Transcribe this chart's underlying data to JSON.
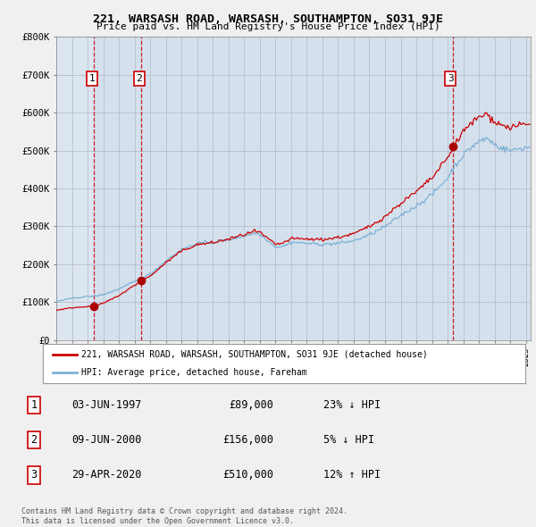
{
  "title": "221, WARSASH ROAD, WARSASH, SOUTHAMPTON, SO31 9JE",
  "subtitle": "Price paid vs. HM Land Registry's House Price Index (HPI)",
  "ylim": [
    0,
    800000
  ],
  "yticks": [
    0,
    100000,
    200000,
    300000,
    400000,
    500000,
    600000,
    700000,
    800000
  ],
  "ytick_labels": [
    "£0",
    "£100K",
    "£200K",
    "£300K",
    "£400K",
    "£500K",
    "£600K",
    "£700K",
    "£800K"
  ],
  "xlim_start": 1995.4,
  "xlim_end": 2025.3,
  "background_color": "#dce6f0",
  "plot_bg_color": "#dce6f0",
  "grid_color": "#b0b8c8",
  "sales": [
    {
      "date_num": 1997.42,
      "price": 89000,
      "label": "1"
    },
    {
      "date_num": 2000.44,
      "price": 156000,
      "label": "2"
    },
    {
      "date_num": 2020.33,
      "price": 510000,
      "label": "3"
    }
  ],
  "sale_marker_color": "#aa0000",
  "hpi_line_color": "#7ab0d4",
  "price_line_color": "#cc0000",
  "legend_label_price": "221, WARSASH ROAD, WARSASH, SOUTHAMPTON, SO31 9JE (detached house)",
  "legend_label_hpi": "HPI: Average price, detached house, Fareham",
  "table_rows": [
    {
      "num": "1",
      "date": "03-JUN-1997",
      "price": "£89,000",
      "hpi": "23% ↓ HPI"
    },
    {
      "num": "2",
      "date": "09-JUN-2000",
      "price": "£156,000",
      "hpi": "5% ↓ HPI"
    },
    {
      "num": "3",
      "date": "29-APR-2020",
      "price": "£510,000",
      "hpi": "12% ↑ HPI"
    }
  ],
  "footnote": "Contains HM Land Registry data © Crown copyright and database right 2024.\nThis data is licensed under the Open Government Licence v3.0.",
  "vline_dates": [
    1997.42,
    2000.44,
    2020.33
  ],
  "vline_color": "#cc0000",
  "label_bg_color": "#dce6f0"
}
